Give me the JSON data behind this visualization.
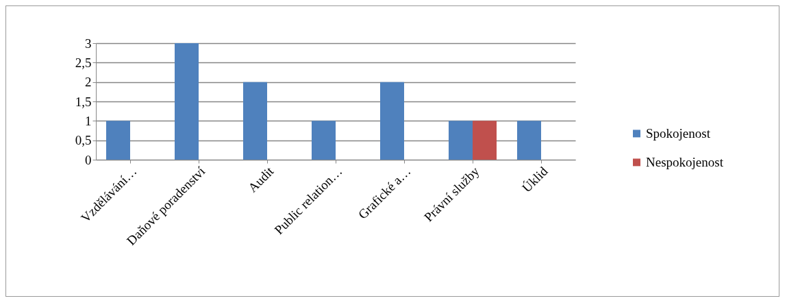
{
  "chart_data": {
    "type": "bar",
    "categories": [
      "Vzdělávání…",
      "Daňové poradenství",
      "Audit",
      "Public relation…",
      "Grafické a…",
      "Právní služby",
      "Úklid"
    ],
    "series": [
      {
        "name": "Spokojenost",
        "color": "#4f81bd",
        "values": [
          1,
          3,
          2,
          1,
          2,
          1,
          1
        ]
      },
      {
        "name": "Nespokojenost",
        "color": "#c0504d",
        "values": [
          0,
          0,
          0,
          0,
          0,
          1,
          0
        ]
      }
    ],
    "ylim": [
      0,
      3
    ],
    "yticks": [
      0,
      {
        "value": 0.5,
        "label": "0,5"
      },
      1,
      {
        "value": 1.5,
        "label": "1,5"
      },
      2,
      {
        "value": 2.5,
        "label": "2,5"
      },
      3
    ],
    "grid": "y",
    "legend": "right"
  }
}
